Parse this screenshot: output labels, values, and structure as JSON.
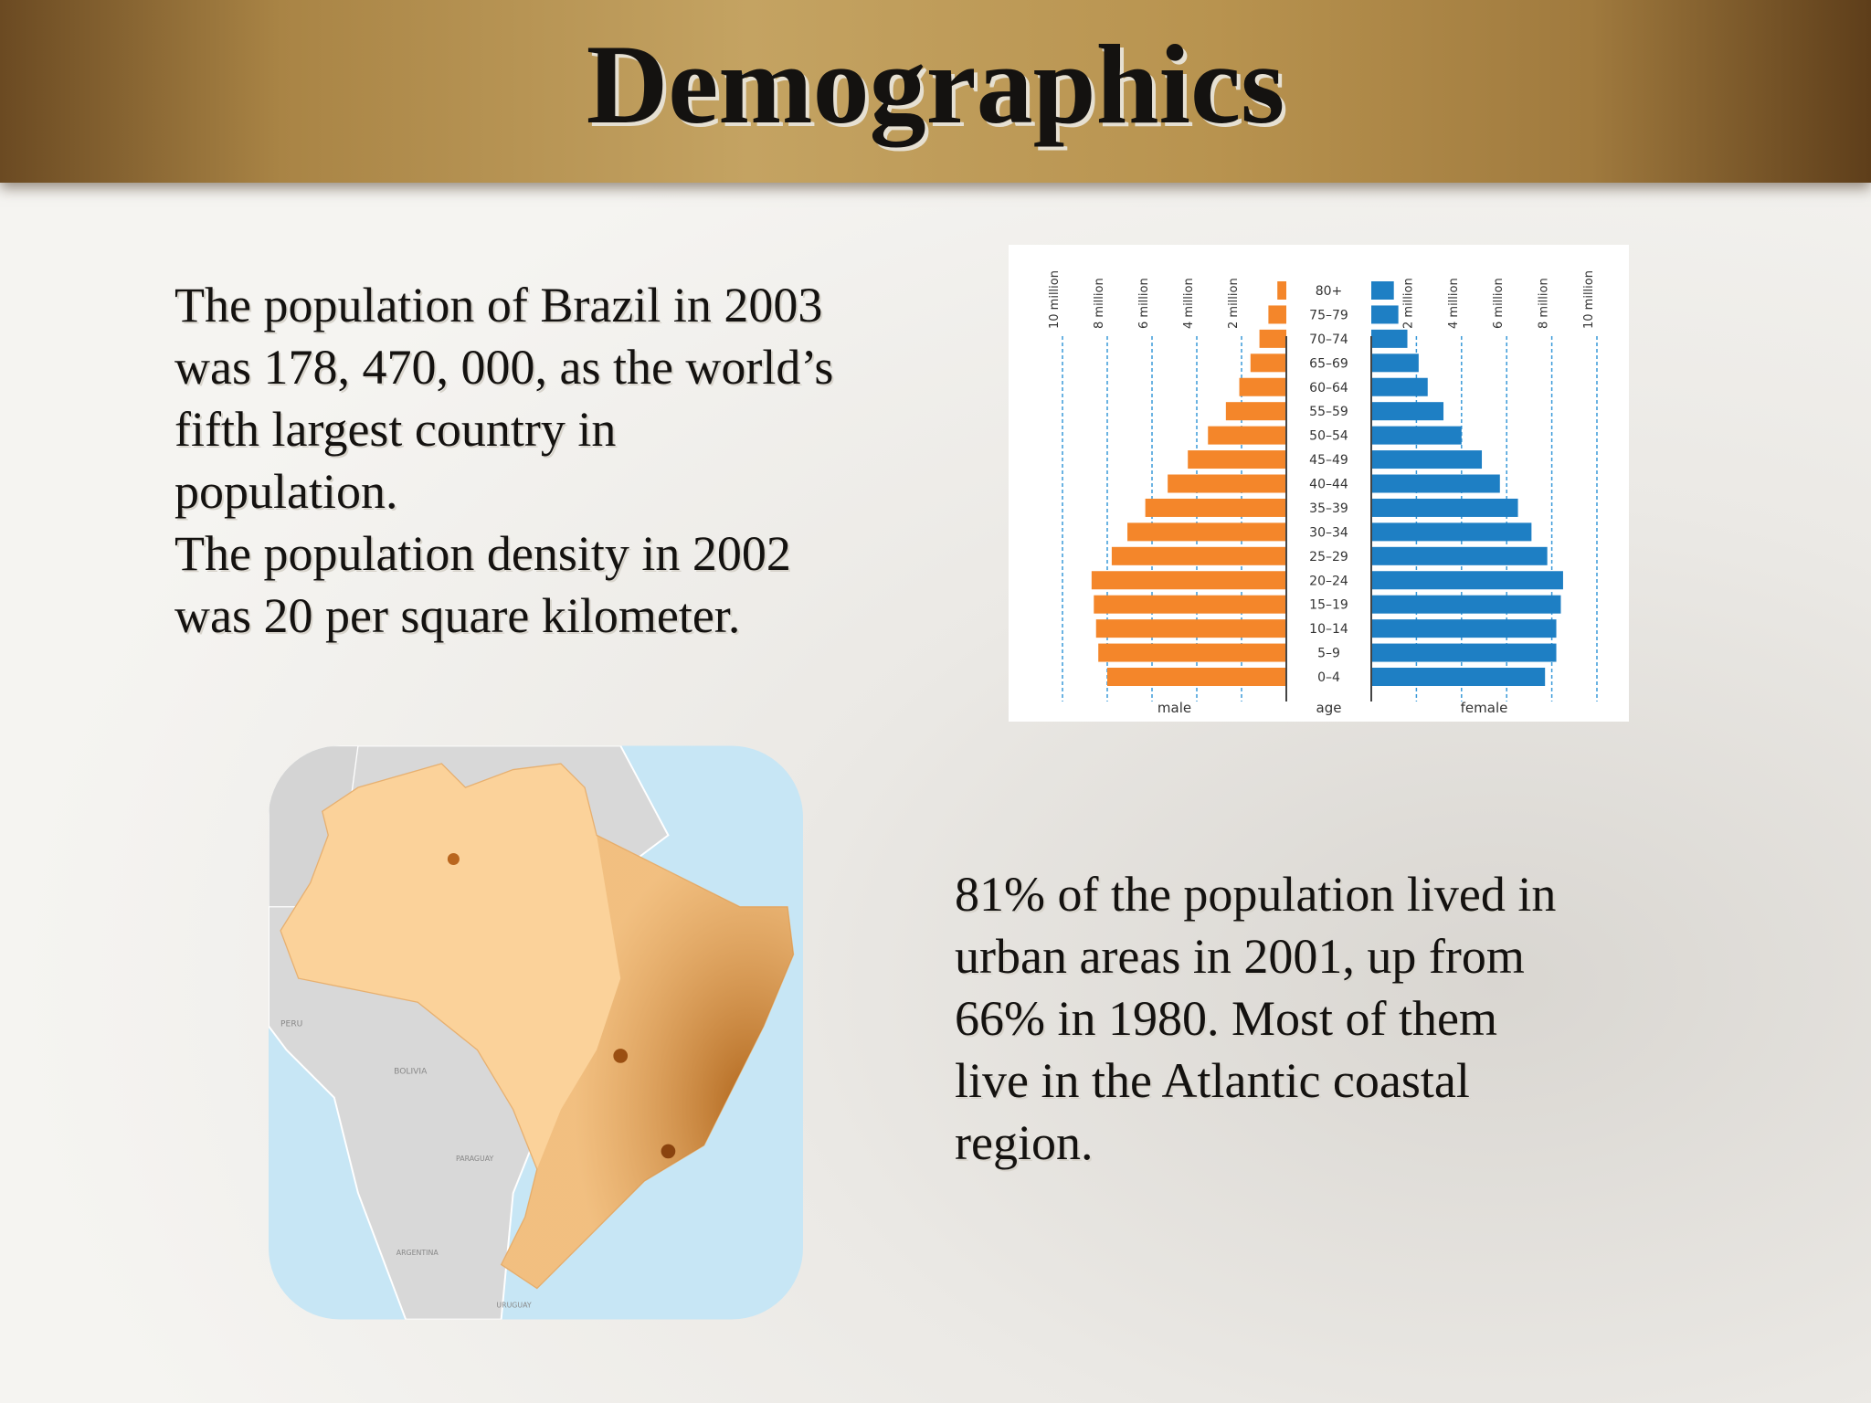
{
  "title": "Demographics",
  "left_text": [
    "The population of Brazil in 2003",
    "was 178, 470, 000, as the world’s",
    "fifth largest country in",
    "population.",
    "The population density in 2002",
    "was 20 per square kilometer."
  ],
  "right_text": [
    "81% of the population lived in",
    "urban areas in 2001, up from",
    "66% in 1980. Most of them",
    "live in the Atlantic coastal",
    "region."
  ],
  "map": {
    "labels": [
      "PERU",
      "BOLIVIA",
      "PARAGUAY",
      "ARGENTINA",
      "URUGUAY"
    ]
  },
  "chart_data": {
    "type": "pyramid",
    "categories": [
      "80+",
      "75–79",
      "70–74",
      "65–69",
      "60–64",
      "55–59",
      "50–54",
      "45–49",
      "40–44",
      "35–39",
      "30–34",
      "25–29",
      "20–24",
      "15–19",
      "10–14",
      "5–9",
      "0–4"
    ],
    "category_label": "age",
    "series": [
      {
        "name": "male",
        "color": "#f4862a",
        "values": [
          0.4,
          0.8,
          1.2,
          1.6,
          2.1,
          2.7,
          3.5,
          4.4,
          5.3,
          6.3,
          7.1,
          7.8,
          8.7,
          8.6,
          8.5,
          8.4,
          8.0
        ]
      },
      {
        "name": "female",
        "color": "#1e7fc4",
        "values": [
          1.0,
          1.2,
          1.6,
          2.1,
          2.5,
          3.2,
          4.0,
          4.9,
          5.7,
          6.5,
          7.1,
          7.8,
          8.5,
          8.4,
          8.2,
          8.2,
          7.7
        ]
      }
    ],
    "xlim": [
      0,
      10
    ],
    "xticks": [
      {
        "value": 2,
        "label": "2 million"
      },
      {
        "value": 4,
        "label": "4 million"
      },
      {
        "value": 6,
        "label": "6 million"
      },
      {
        "value": 8,
        "label": "8 million"
      },
      {
        "value": 10,
        "label": "10 million"
      }
    ],
    "grid": true
  }
}
